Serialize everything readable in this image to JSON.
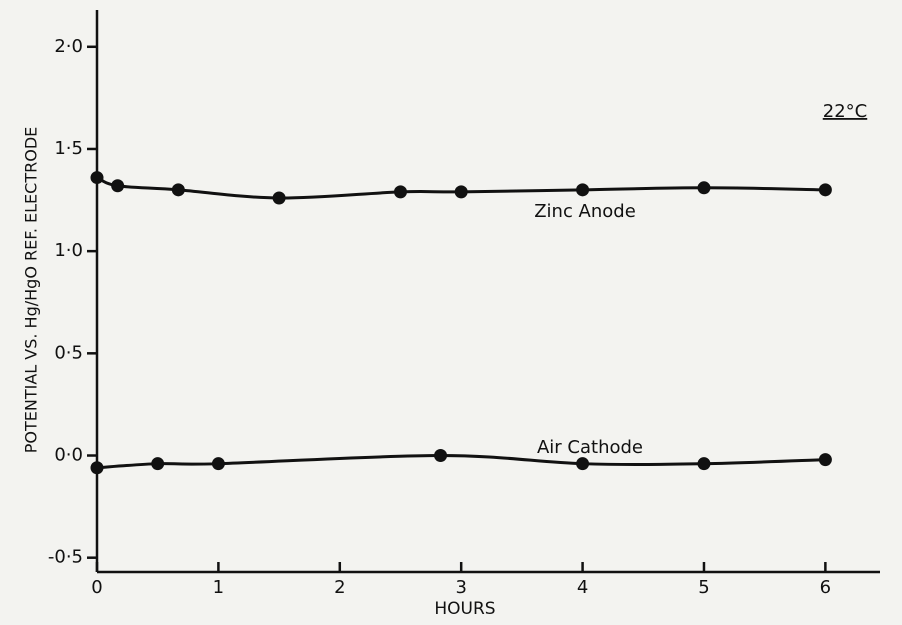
{
  "chart_data": {
    "type": "scatter",
    "xlabel": "HOURS",
    "ylabel": "POTENTIAL VS. Hg/HgO REF. ELECTRODE",
    "annotations": [
      "22°C",
      "Zinc Anode",
      "Air Cathode"
    ],
    "xlim": [
      0,
      6.45
    ],
    "ylim": [
      -0.57,
      2.18
    ],
    "xticks": [
      0,
      1,
      2,
      3,
      4,
      5,
      6
    ],
    "yticks": [
      {
        "value": 2.0,
        "label": "2·0"
      },
      {
        "value": 1.5,
        "label": "1·5"
      },
      {
        "value": 1.0,
        "label": "1·0"
      },
      {
        "value": 0.5,
        "label": "0·5"
      },
      {
        "value": 0.0,
        "label": "0·0"
      },
      {
        "value": -0.5,
        "label": "-0·5"
      }
    ],
    "series": [
      {
        "name": "Zinc Anode",
        "color": "#111111",
        "x": [
          0,
          0.17,
          0.67,
          1.5,
          2.5,
          3,
          4,
          5,
          6
        ],
        "values": [
          1.36,
          1.32,
          1.3,
          1.26,
          1.29,
          1.29,
          1.3,
          1.31,
          1.3
        ]
      },
      {
        "name": "Air Cathode",
        "color": "#111111",
        "x": [
          0,
          0.5,
          1,
          2.83,
          4,
          5,
          6
        ],
        "values": [
          -0.06,
          -0.04,
          -0.04,
          0.0,
          -0.04,
          -0.04,
          -0.02
        ]
      }
    ]
  }
}
